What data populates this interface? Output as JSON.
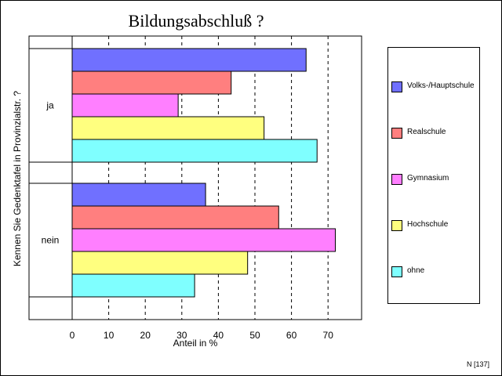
{
  "chart_data": {
    "type": "bar",
    "orientation": "horizontal",
    "title": "Bildungsabschluß ?",
    "xlabel": "Anteil in %",
    "ylabel": "Kennen Sie Gedenktafel in Provinzialstr. ?",
    "categories": [
      "ja",
      "nein"
    ],
    "xlim": [
      0,
      70
    ],
    "xticks": [
      0,
      10,
      20,
      30,
      40,
      50,
      60,
      70
    ],
    "grid": "vertical dashed",
    "legend_position": "right",
    "series": [
      {
        "name": "Volks-/Hauptschule",
        "color": "#7070ff",
        "values": [
          64,
          36.5
        ]
      },
      {
        "name": "Realschule",
        "color": "#ff7f7f",
        "values": [
          43.5,
          56.5
        ]
      },
      {
        "name": "Gymnasium",
        "color": "#ff7fff",
        "values": [
          29,
          72
        ]
      },
      {
        "name": "Hochschule",
        "color": "#ffff7f",
        "values": [
          52.5,
          48
        ]
      },
      {
        "name": "ohne",
        "color": "#7fffff",
        "values": [
          67,
          33.5
        ]
      }
    ]
  },
  "footnote": "N [137]"
}
